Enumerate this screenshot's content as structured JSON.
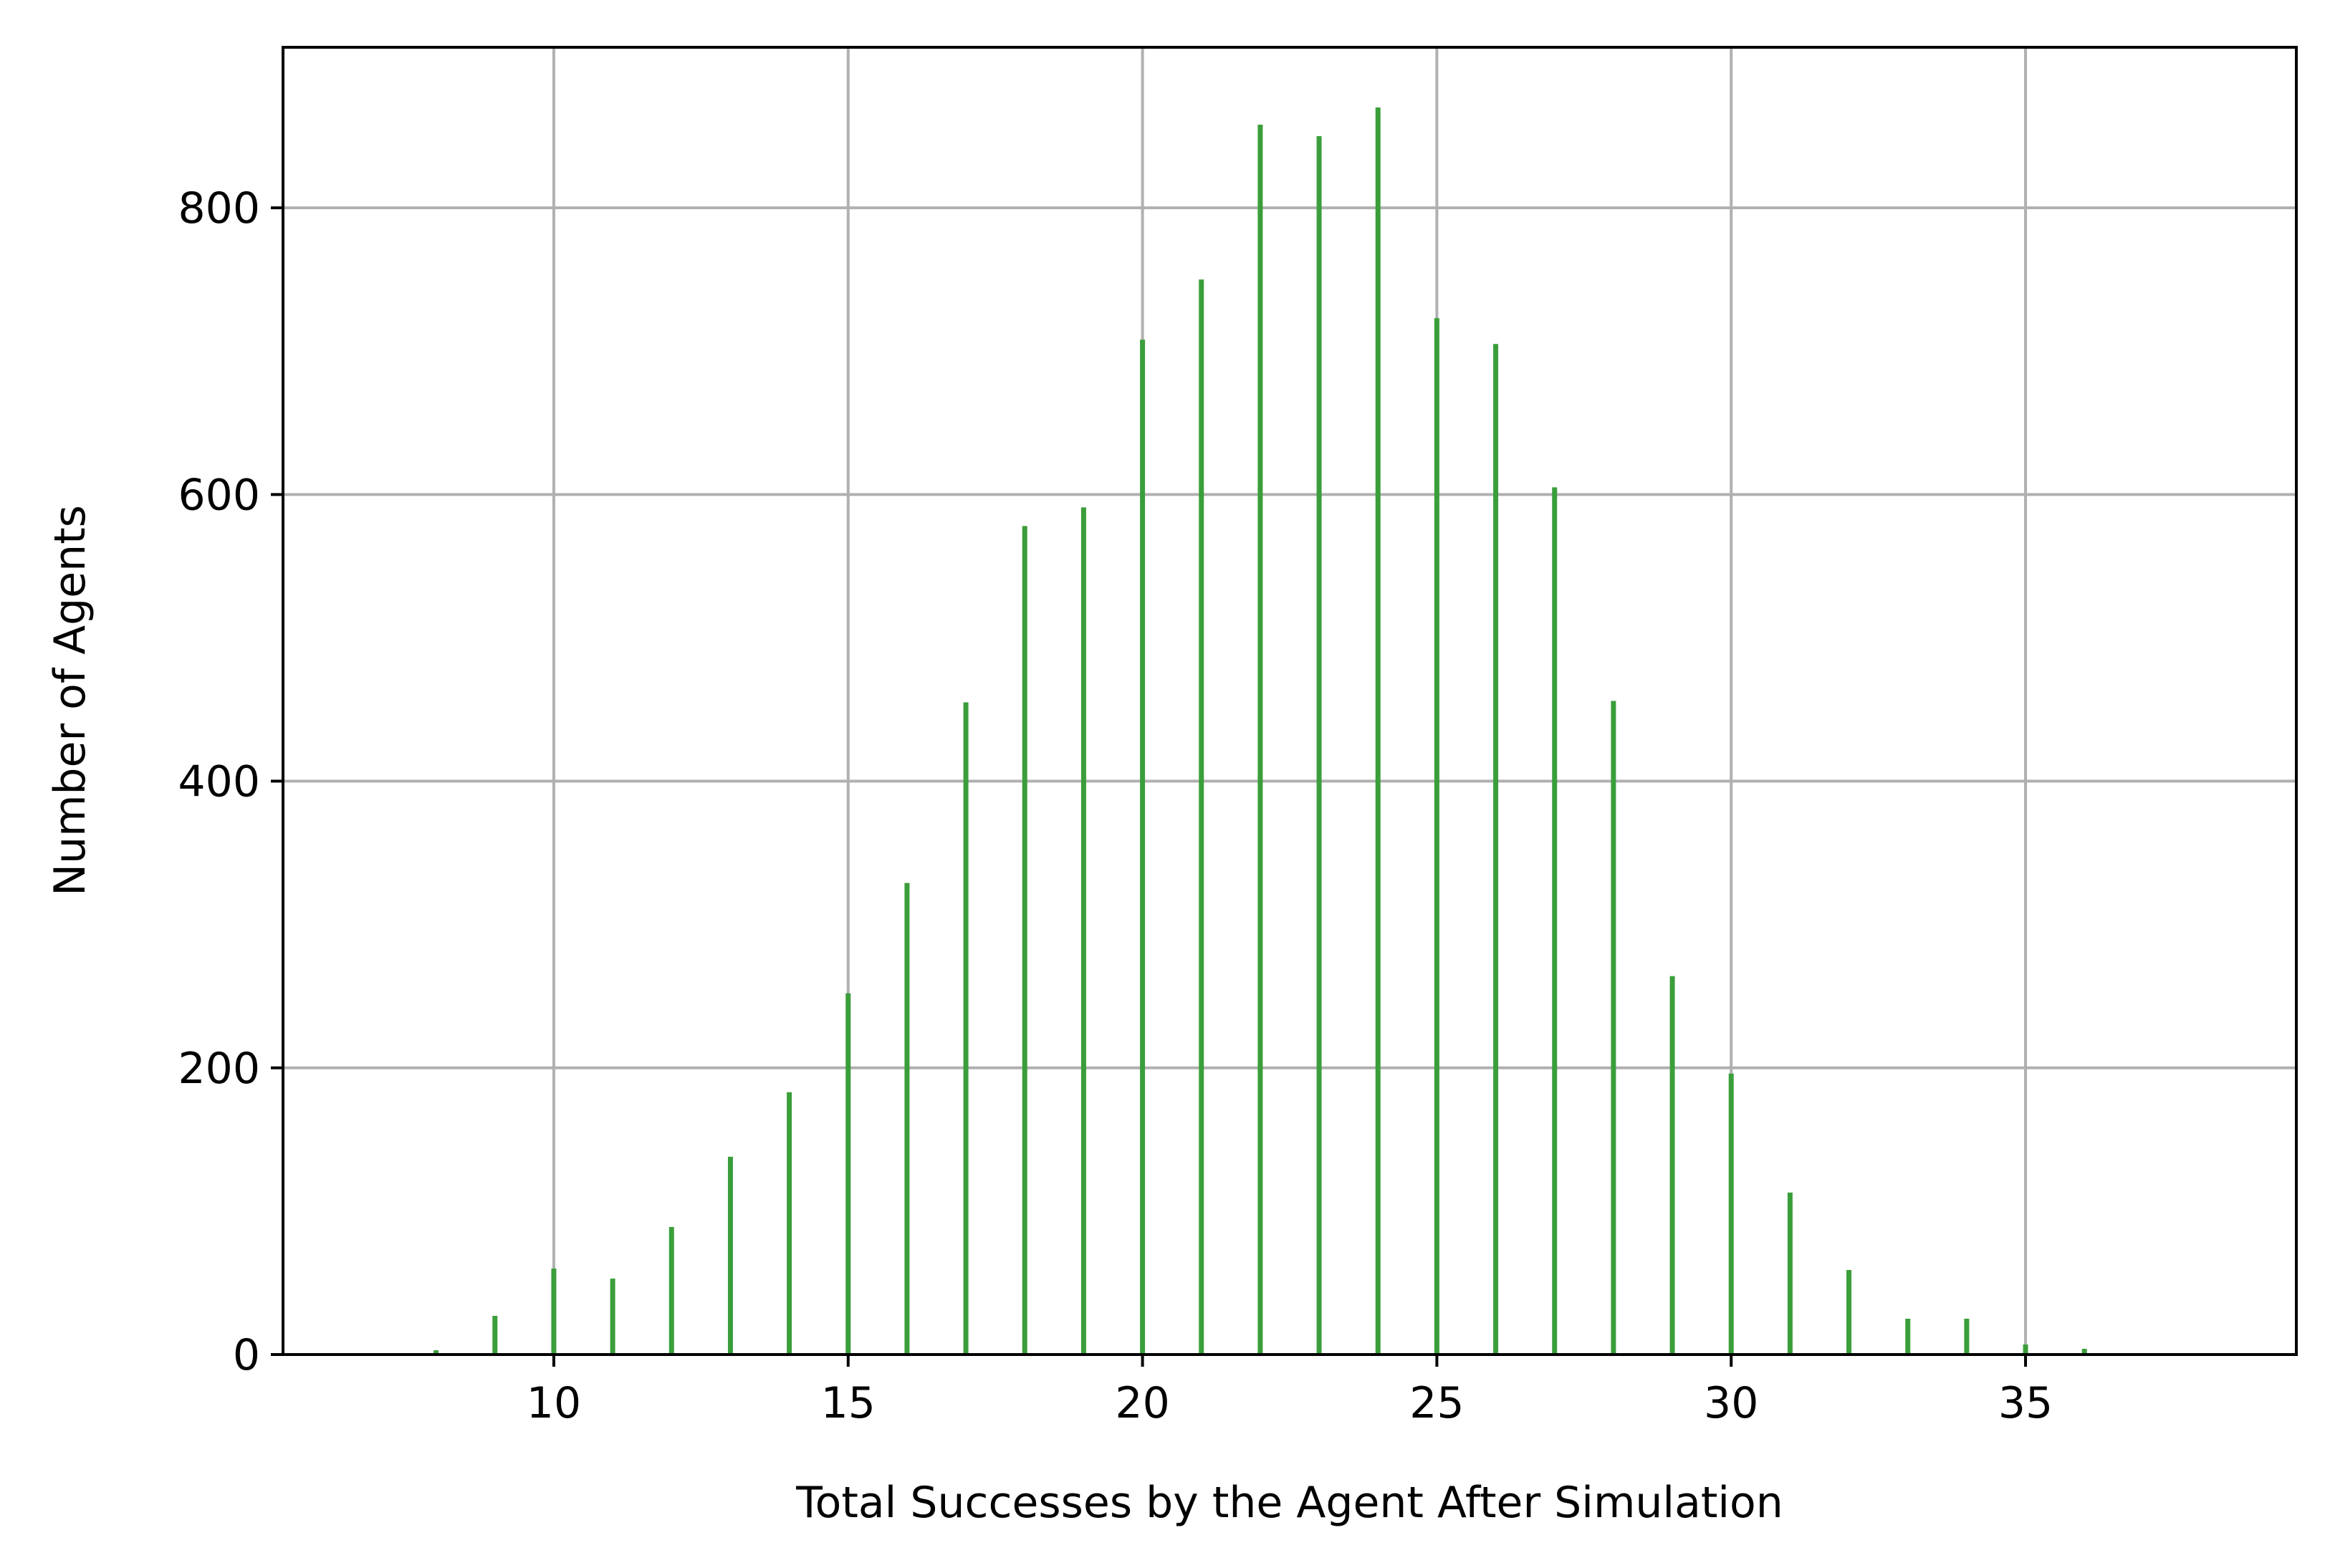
{
  "chart_data": {
    "type": "bar",
    "title": "",
    "xlabel": "Total Successes by the Agent After Simulation",
    "ylabel": "Number of Agents",
    "xlim": [
      5.4,
      39.6
    ],
    "ylim": [
      0,
      912
    ],
    "xticks": [
      10,
      15,
      20,
      25,
      30,
      35
    ],
    "yticks": [
      0,
      200,
      400,
      600,
      800
    ],
    "grid": true,
    "bar_color": "#3a9e3a",
    "x": [
      7,
      8,
      9,
      10,
      11,
      12,
      13,
      14,
      15,
      16,
      17,
      18,
      19,
      20,
      21,
      22,
      23,
      24,
      25,
      26,
      27,
      28,
      29,
      30,
      31,
      32,
      33,
      34,
      35,
      36,
      38
    ],
    "values": [
      1,
      3,
      27,
      60,
      53,
      89,
      138,
      183,
      252,
      329,
      455,
      578,
      591,
      708,
      750,
      858,
      850,
      870,
      723,
      705,
      605,
      456,
      264,
      196,
      113,
      59,
      25,
      25,
      7,
      4,
      1
    ]
  }
}
